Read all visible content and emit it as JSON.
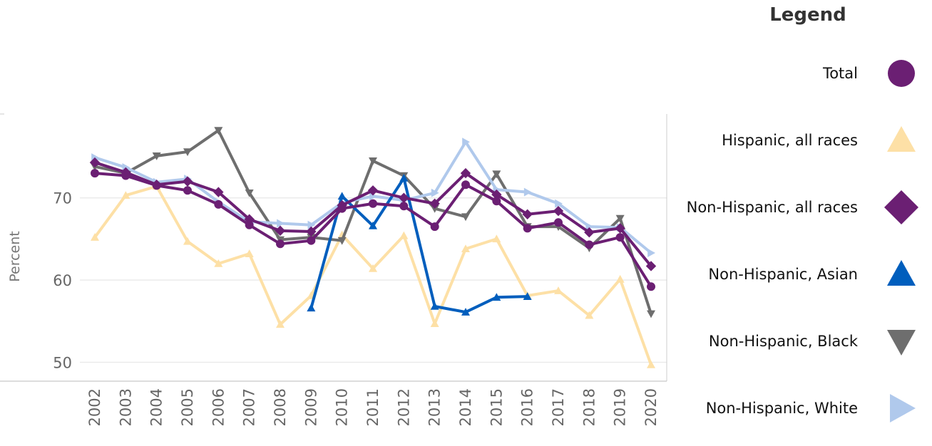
{
  "legend": {
    "title": "Legend"
  },
  "chart_data": {
    "type": "line",
    "title": "",
    "xlabel": "",
    "ylabel": "Percent",
    "ylim": [
      47.7,
      80.2
    ],
    "yticks": [
      50,
      60,
      70
    ],
    "grid": true,
    "legend_position": "right",
    "x": [
      "2002",
      "2003",
      "2004",
      "2005",
      "2006",
      "2007",
      "2008",
      "2009",
      "2010",
      "2011",
      "2012",
      "2013",
      "2014",
      "2015",
      "2016",
      "2017",
      "2018",
      "2019",
      "2020"
    ],
    "series": [
      {
        "name": "Total",
        "color": "#6b1f73",
        "marker": "circle",
        "values": [
          73.0,
          72.7,
          71.5,
          70.9,
          69.2,
          66.7,
          64.4,
          64.8,
          68.7,
          69.3,
          69.0,
          66.5,
          71.6,
          69.6,
          66.3,
          67.0,
          64.3,
          65.2,
          59.2
        ]
      },
      {
        "name": "Hispanic, all races",
        "color": "#fde0a6",
        "marker": "triangle-up",
        "values": [
          65.2,
          70.3,
          71.4,
          64.7,
          62.0,
          63.2,
          54.6,
          58.1,
          65.5,
          61.4,
          65.4,
          54.7,
          63.8,
          65.0,
          58.1,
          58.7,
          55.7,
          60.1,
          49.7
        ]
      },
      {
        "name": "Non-Hispanic, all races",
        "color": "#6b1f73",
        "marker": "diamond",
        "values": [
          74.3,
          73.1,
          71.6,
          72.0,
          70.7,
          67.4,
          66.0,
          65.9,
          69.1,
          70.9,
          70.0,
          69.3,
          73.0,
          70.4,
          68.0,
          68.4,
          65.8,
          66.3,
          61.7
        ]
      },
      {
        "name": "Non-Hispanic, Asian",
        "color": "#005ebd",
        "marker": "triangle-up",
        "values": [
          null,
          null,
          null,
          null,
          null,
          null,
          null,
          56.6,
          70.2,
          66.6,
          72.4,
          56.8,
          56.1,
          57.9,
          58.0,
          null,
          null,
          null,
          null
        ]
      },
      {
        "name": "Non-Hispanic, Black",
        "color": "#6e6e6e",
        "marker": "triangle-down",
        "values": [
          73.8,
          73.0,
          75.1,
          75.6,
          78.2,
          70.6,
          64.9,
          65.2,
          64.8,
          74.5,
          72.7,
          68.7,
          67.7,
          72.9,
          66.5,
          66.5,
          63.9,
          67.5,
          55.9
        ]
      },
      {
        "name": "Non-Hispanic, White",
        "color": "#b0c9ec",
        "marker": "triangle-right",
        "values": [
          74.9,
          73.7,
          71.9,
          72.3,
          69.5,
          67.1,
          66.9,
          66.7,
          69.4,
          70.2,
          69.7,
          70.6,
          76.8,
          71.0,
          70.7,
          69.3,
          66.5,
          66.4,
          63.3
        ]
      }
    ]
  }
}
